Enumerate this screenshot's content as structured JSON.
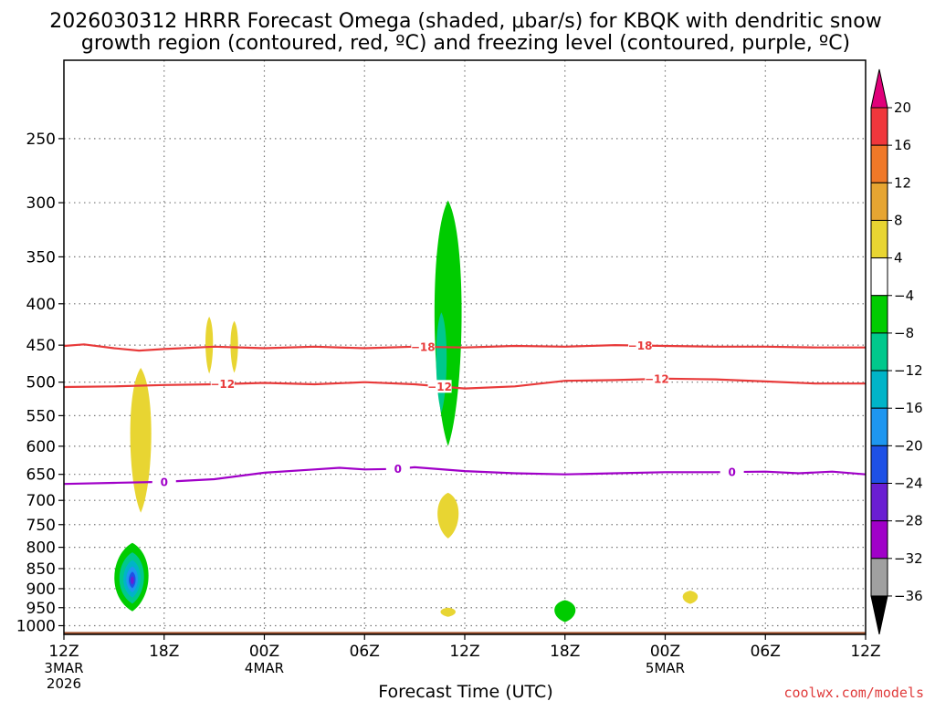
{
  "chart_data": {
    "type": "contour",
    "title_line1": "2026030312 HRRR Forecast Omega (shaded, μbar/s) for KBQK with dendritic snow",
    "title_line2": "growth region (contoured, red, ºC) and freezing level (contoured, purple, ºC)",
    "xlabel": "Forecast Time (UTC)",
    "ylabel": "",
    "credit": "coolwx.com/models",
    "x_range_hours": [
      0,
      48
    ],
    "y_axis": {
      "scale": "log",
      "inverted": true,
      "range_hpa": [
        1025,
        200
      ],
      "tick_labels": [
        "250",
        "300",
        "350",
        "400",
        "450",
        "500",
        "550",
        "600",
        "650",
        "700",
        "750",
        "800",
        "850",
        "900",
        "950",
        "1000"
      ],
      "tick_values": [
        250,
        300,
        350,
        400,
        450,
        500,
        550,
        600,
        650,
        700,
        750,
        800,
        850,
        900,
        950,
        1000
      ]
    },
    "x_ticks": [
      {
        "hour": 0,
        "label": "12Z",
        "sub1": "3MAR",
        "sub2": "2026"
      },
      {
        "hour": 6,
        "label": "18Z",
        "sub1": "",
        "sub2": ""
      },
      {
        "hour": 12,
        "label": "00Z",
        "sub1": "4MAR",
        "sub2": ""
      },
      {
        "hour": 18,
        "label": "06Z",
        "sub1": "",
        "sub2": ""
      },
      {
        "hour": 24,
        "label": "12Z",
        "sub1": "",
        "sub2": ""
      },
      {
        "hour": 30,
        "label": "18Z",
        "sub1": "",
        "sub2": ""
      },
      {
        "hour": 36,
        "label": "00Z",
        "sub1": "5MAR",
        "sub2": ""
      },
      {
        "hour": 42,
        "label": "06Z",
        "sub1": "",
        "sub2": ""
      },
      {
        "hour": 48,
        "label": "12Z",
        "sub1": "",
        "sub2": ""
      }
    ],
    "grid": true,
    "colorbar": {
      "labels": [
        "20",
        "16",
        "12",
        "8",
        "4",
        "−4",
        "−8",
        "−12",
        "−16",
        "−20",
        "−24",
        "−28",
        "−32",
        "−36"
      ],
      "colors": [
        "#e0007a",
        "#f0373c",
        "#f07828",
        "#e6a532",
        "#e8d532",
        "#ffffff",
        "#00cc00",
        "#00c88c",
        "#00b4c8",
        "#1e96f0",
        "#1e50e6",
        "#6a1ed2",
        "#a000c8",
        "#a0a0a0",
        "#000000"
      ]
    },
    "isotherms_dgz": [
      {
        "level": "−18",
        "color": "#e83a3a",
        "points": [
          [
            0,
            451
          ],
          [
            1.2,
            449
          ],
          [
            3,
            454
          ],
          [
            4.5,
            457
          ],
          [
            6,
            455
          ],
          [
            9,
            452
          ],
          [
            12,
            454
          ],
          [
            15,
            452
          ],
          [
            18,
            454
          ],
          [
            21,
            452
          ],
          [
            24,
            453
          ],
          [
            27,
            451
          ],
          [
            30,
            452
          ],
          [
            33,
            450
          ],
          [
            36,
            451
          ],
          [
            39,
            452
          ],
          [
            42,
            452
          ],
          [
            45,
            453
          ],
          [
            48,
            453
          ]
        ],
        "label_hours": [
          21.5,
          34.5
        ]
      },
      {
        "level": "−12",
        "color": "#e83a3a",
        "points": [
          [
            0,
            507
          ],
          [
            3,
            506
          ],
          [
            6,
            504
          ],
          [
            9,
            503
          ],
          [
            12,
            501
          ],
          [
            15,
            503
          ],
          [
            18,
            500
          ],
          [
            21,
            503
          ],
          [
            24,
            509
          ],
          [
            27,
            506
          ],
          [
            30,
            498
          ],
          [
            33,
            497
          ],
          [
            36,
            495
          ],
          [
            39,
            496
          ],
          [
            42,
            499
          ],
          [
            45,
            502
          ],
          [
            48,
            502
          ]
        ],
        "label_hours": [
          9.5,
          22.5,
          35.5
        ]
      }
    ],
    "isotherm_freezing": {
      "level": "0",
      "color": "#a000c8",
      "points": [
        [
          0,
          668
        ],
        [
          3,
          666
        ],
        [
          6,
          664
        ],
        [
          9,
          659
        ],
        [
          12,
          647
        ],
        [
          15,
          641
        ],
        [
          16.5,
          638
        ],
        [
          18,
          641
        ],
        [
          20,
          640
        ],
        [
          21,
          637
        ],
        [
          24,
          644
        ],
        [
          27,
          648
        ],
        [
          30,
          650
        ],
        [
          33,
          648
        ],
        [
          36,
          646
        ],
        [
          39,
          646
        ],
        [
          42,
          645
        ],
        [
          44,
          648
        ],
        [
          46,
          645
        ],
        [
          48,
          650
        ]
      ],
      "label_hours": [
        6,
        20,
        40
      ]
    },
    "omega_features": [
      {
        "id": "yellow-column-a",
        "class": "4 to 8",
        "center_hour": 4.6,
        "hour_halfwidth": 0.7,
        "p_top": 480,
        "p_bottom": 725,
        "color": "#e8d532"
      },
      {
        "id": "yellow-sliver-b",
        "class": "4 to 8",
        "center_hour": 8.7,
        "hour_halfwidth": 0.25,
        "p_top": 415,
        "p_bottom": 488,
        "color": "#e8d532"
      },
      {
        "id": "yellow-sliver-c",
        "class": "4 to 8",
        "center_hour": 10.2,
        "hour_halfwidth": 0.25,
        "p_top": 420,
        "p_bottom": 487,
        "color": "#e8d532"
      },
      {
        "id": "green-column-d",
        "class": "−4 to −8",
        "center_hour": 23.0,
        "hour_halfwidth": 0.9,
        "p_top": 298,
        "p_bottom": 600,
        "color": "#00cc00"
      },
      {
        "id": "teal-core-d",
        "class": "−8 to −12",
        "center_hour": 22.6,
        "hour_halfwidth": 0.35,
        "p_top": 410,
        "p_bottom": 545,
        "color": "#00c88c"
      },
      {
        "id": "yellow-blob-e",
        "class": "4 to 8",
        "center_hour": 23.0,
        "hour_halfwidth": 0.7,
        "p_top": 685,
        "p_bottom": 780,
        "color": "#e8d532"
      },
      {
        "id": "low-level-max-f",
        "class": "−4 to −28",
        "center_hour": 4.1,
        "hour_halfwidth": 0.9,
        "p_top": 790,
        "p_bottom": 960,
        "color": "#00cc00"
      },
      {
        "id": "yellow-blob-g",
        "class": "4 to 8",
        "center_hour": 23.0,
        "hour_halfwidth": 0.5,
        "p_top": 950,
        "p_bottom": 975,
        "color": "#e8d532"
      },
      {
        "id": "green-blob-h",
        "class": "−4 to −8",
        "center_hour": 30.0,
        "hour_halfwidth": 0.7,
        "p_top": 930,
        "p_bottom": 990,
        "color": "#00cc00"
      },
      {
        "id": "yellow-blob-i",
        "class": "4 to 8",
        "center_hour": 37.5,
        "hour_halfwidth": 0.5,
        "p_top": 905,
        "p_bottom": 940,
        "color": "#e8d532"
      }
    ],
    "ground": {
      "p_top": 1018,
      "color": "#a0522d"
    }
  }
}
